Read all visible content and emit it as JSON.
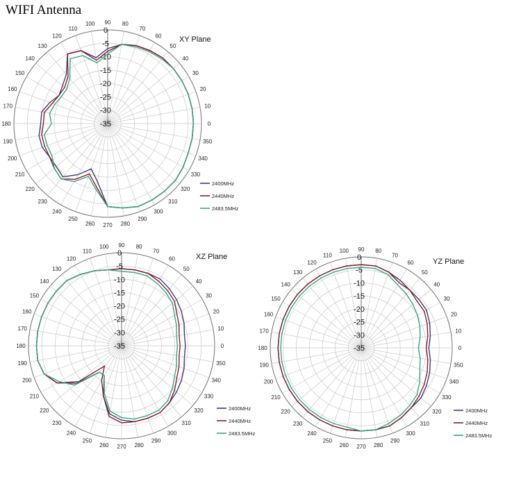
{
  "page_title": "WIFI Antenna",
  "colors": {
    "2400MHz": "#3d3a6e",
    "2440MHz": "#8b1a2b",
    "2483.5MHz": "#2fa882",
    "grid": "#c8c8c8",
    "axis": "#707070"
  },
  "chart_data": [
    {
      "type": "radar",
      "title": "XY Plane",
      "r_range": [
        -35,
        0
      ],
      "r_ticks": [
        "0",
        "-5",
        "-10",
        "-15",
        "-20",
        "-25",
        "-30",
        "-35"
      ],
      "angle_labels": [
        "0",
        "10",
        "20",
        "30",
        "40",
        "50",
        "60",
        "70",
        "80",
        "90",
        "100",
        "110",
        "120",
        "130",
        "140",
        "150",
        "160",
        "170",
        "180",
        "190",
        "200",
        "210",
        "220",
        "230",
        "240",
        "250",
        "260",
        "270",
        "280",
        "290",
        "300",
        "310",
        "320",
        "330",
        "340",
        "350"
      ],
      "legend": [
        "2400MHz",
        "2440MHz",
        "2483.5MHz"
      ],
      "angles": [
        0,
        10,
        20,
        30,
        40,
        50,
        60,
        70,
        80,
        90,
        100,
        110,
        120,
        130,
        140,
        150,
        160,
        170,
        180,
        190,
        200,
        210,
        220,
        230,
        240,
        250,
        260,
        270,
        280,
        290,
        300,
        310,
        320,
        330,
        340,
        350
      ],
      "series": [
        {
          "name": "2400MHz",
          "values": [
            -3,
            -3,
            -3,
            -3,
            -3,
            -3,
            -3.5,
            -4,
            -5,
            -7,
            -10,
            -6,
            -5,
            -11,
            -13,
            -14,
            -12,
            -10,
            -10,
            -9,
            -9,
            -10,
            -10,
            -9,
            -13,
            -17,
            -13,
            -4,
            -3,
            -2,
            -2,
            -2,
            -2,
            -2.5,
            -3,
            -3
          ]
        },
        {
          "name": "2440MHz",
          "values": [
            -3,
            -3,
            -3,
            -3,
            -3,
            -3,
            -3.5,
            -4,
            -5,
            -8,
            -11,
            -6,
            -5,
            -12,
            -14,
            -14,
            -13,
            -11,
            -11,
            -10,
            -10,
            -10,
            -9,
            -8,
            -11,
            -15,
            -11,
            -4,
            -3,
            -2,
            -2,
            -2,
            -2,
            -2.5,
            -3,
            -3
          ]
        },
        {
          "name": "2483.5MHz",
          "values": [
            -3,
            -3,
            -3,
            -3,
            -3,
            -3.5,
            -4,
            -4.5,
            -5,
            -9,
            -12,
            -8,
            -7,
            -13,
            -15,
            -15,
            -14,
            -13,
            -14,
            -11,
            -11,
            -11,
            -9,
            -8,
            -10,
            -14,
            -10,
            -4,
            -3,
            -2,
            -2,
            -2,
            -2,
            -2.5,
            -3,
            -3
          ]
        }
      ]
    },
    {
      "type": "radar",
      "title": "XZ Plane",
      "r_range": [
        -35,
        0
      ],
      "r_ticks": [
        "0",
        "-5",
        "-10",
        "-15",
        "-20",
        "-25",
        "-30",
        "-35"
      ],
      "angle_labels": [
        "0",
        "10",
        "20",
        "30",
        "40",
        "50",
        "60",
        "70",
        "80",
        "90",
        "100",
        "110",
        "120",
        "130",
        "140",
        "150",
        "160",
        "170",
        "180",
        "190",
        "200",
        "210",
        "220",
        "230",
        "240",
        "250",
        "260",
        "270",
        "280",
        "290",
        "300",
        "310",
        "320",
        "330",
        "340",
        "350"
      ],
      "legend": [
        "2400MHz",
        "2440MHz",
        "2483.5MHz"
      ],
      "angles": [
        0,
        10,
        20,
        30,
        40,
        50,
        60,
        70,
        80,
        90,
        100,
        110,
        120,
        130,
        140,
        150,
        160,
        170,
        180,
        190,
        200,
        210,
        220,
        230,
        240,
        250,
        260,
        270,
        280,
        290,
        300,
        310,
        320,
        330,
        340,
        350
      ],
      "series": [
        {
          "name": "2400MHz",
          "values": [
            -11,
            -11,
            -10,
            -9,
            -8,
            -7,
            -6,
            -6,
            -6,
            -6,
            -6,
            -5,
            -4,
            -3,
            -3,
            -3,
            -3,
            -3,
            -3,
            -3,
            -4,
            -7,
            -13,
            -22,
            -22,
            -15,
            -9,
            -7,
            -6,
            -6,
            -6,
            -7,
            -8,
            -9,
            -10,
            -11
          ]
        },
        {
          "name": "2440MHz",
          "values": [
            -13,
            -13,
            -12,
            -11,
            -9,
            -8,
            -7,
            -6,
            -6,
            -6,
            -6,
            -5,
            -4,
            -3,
            -3,
            -3,
            -3,
            -3,
            -3,
            -3,
            -4,
            -7,
            -14,
            -25,
            -20,
            -15,
            -8,
            -6,
            -6,
            -6,
            -6,
            -7,
            -9,
            -11,
            -12,
            -13
          ]
        },
        {
          "name": "2483.5MHz",
          "values": [
            -14,
            -14,
            -13,
            -12,
            -10,
            -9,
            -8,
            -7,
            -7,
            -7,
            -6,
            -5,
            -4,
            -3,
            -3,
            -3,
            -3,
            -3,
            -3,
            -3,
            -4,
            -8,
            -12,
            -22,
            -22,
            -16,
            -10,
            -8,
            -7,
            -7,
            -7,
            -8,
            -10,
            -12,
            -13,
            -14
          ]
        }
      ]
    },
    {
      "type": "radar",
      "title": "YZ Plane",
      "r_range": [
        -35,
        0
      ],
      "r_ticks": [
        "0",
        "-5",
        "-10",
        "-15",
        "-20",
        "-25",
        "-30",
        "-35"
      ],
      "angle_labels": [
        "0",
        "10",
        "20",
        "30",
        "40",
        "50",
        "60",
        "70",
        "80",
        "90",
        "100",
        "110",
        "120",
        "130",
        "140",
        "150",
        "160",
        "170",
        "180",
        "190",
        "200",
        "210",
        "220",
        "230",
        "240",
        "250",
        "260",
        "270",
        "280",
        "290",
        "300",
        "310",
        "320",
        "330",
        "340",
        "350"
      ],
      "legend": [
        "2400MHz",
        "2440MHz",
        "2483.5MHz"
      ],
      "angles": [
        0,
        10,
        20,
        30,
        40,
        50,
        60,
        70,
        80,
        90,
        100,
        110,
        120,
        130,
        140,
        150,
        160,
        170,
        180,
        190,
        200,
        210,
        220,
        230,
        240,
        250,
        260,
        270,
        280,
        290,
        300,
        310,
        320,
        330,
        340,
        350
      ],
      "series": [
        {
          "name": "2400MHz",
          "values": [
            -9,
            -8,
            -7,
            -6,
            -6,
            -6,
            -5,
            -4,
            -3,
            -3,
            -3,
            -3,
            -3,
            -3,
            -3,
            -3,
            -3,
            -3,
            -3,
            -3,
            -3,
            -3,
            -3,
            -3,
            -3,
            -3,
            -3,
            -3,
            -3,
            -3,
            -4,
            -5,
            -5,
            -6,
            -7,
            -8
          ]
        },
        {
          "name": "2440MHz",
          "values": [
            -10,
            -9,
            -8,
            -7,
            -7,
            -6,
            -6,
            -4,
            -3,
            -3,
            -3,
            -3,
            -3,
            -3,
            -3,
            -3,
            -3,
            -3,
            -3,
            -3,
            -3,
            -3,
            -3,
            -3,
            -3,
            -3,
            -3,
            -3,
            -3,
            -3,
            -4,
            -5,
            -6,
            -7,
            -8,
            -9
          ]
        },
        {
          "name": "2483.5MHz",
          "values": [
            -13,
            -12,
            -11,
            -10,
            -9,
            -8,
            -7,
            -5,
            -4,
            -4,
            -4,
            -4,
            -4,
            -4,
            -4,
            -4,
            -4,
            -4,
            -4,
            -4,
            -4,
            -4,
            -4,
            -4,
            -4,
            -4,
            -4,
            -3,
            -3,
            -4,
            -5,
            -6,
            -7,
            -9,
            -11,
            -12
          ]
        }
      ]
    }
  ]
}
